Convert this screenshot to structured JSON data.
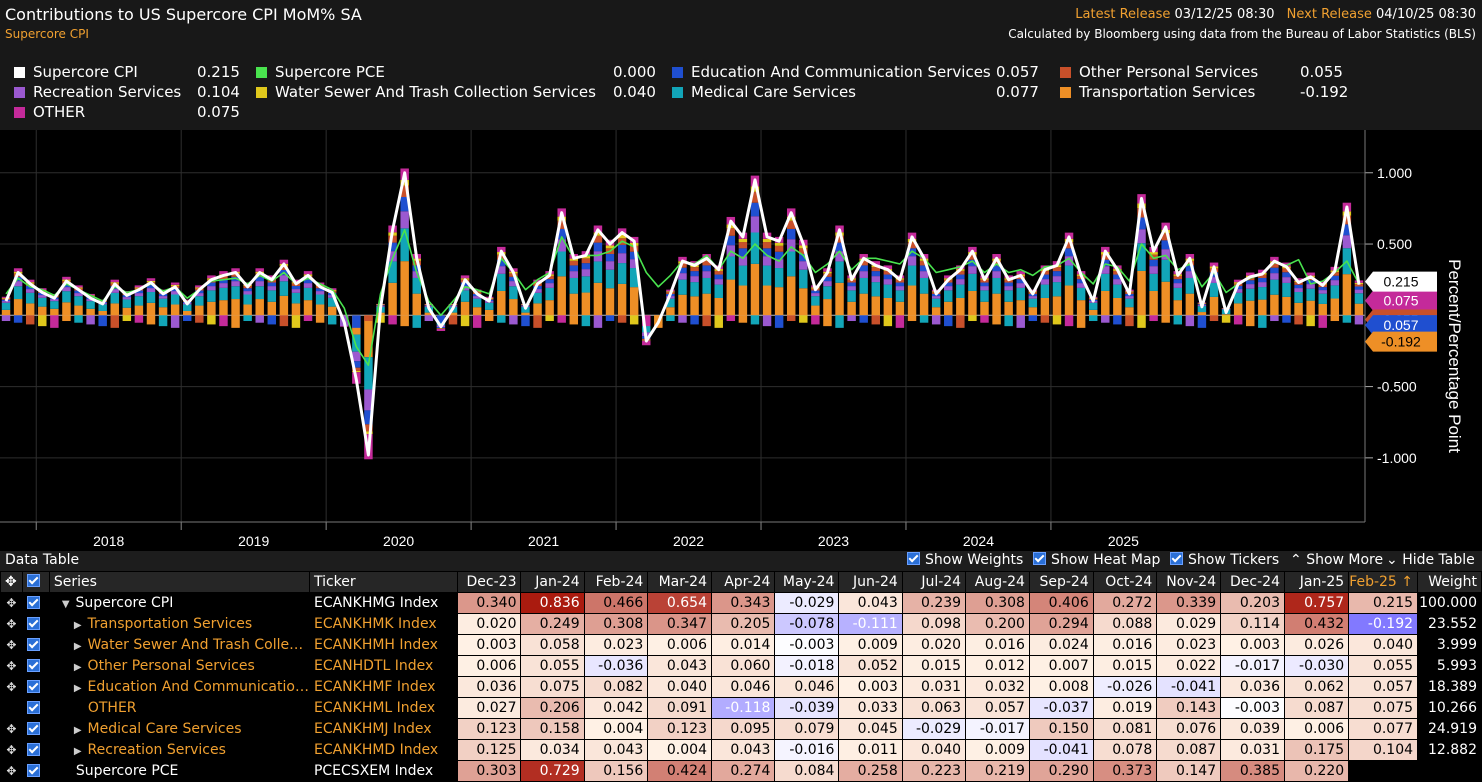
{
  "header": {
    "title": "Contributions to US Supercore CPI MoM% SA",
    "subtitle": "Supercore CPI",
    "latest_label": "Latest Release",
    "latest_value": "03/12/25 08:30",
    "next_label": "Next Release",
    "next_value": "04/10/25 08:30",
    "source": "Calculated by Bloomberg using data from the Bureau of Labor Statistics (BLS)"
  },
  "legend": [
    {
      "name": "Supercore CPI",
      "value": "0.215",
      "color": "#ffffff"
    },
    {
      "name": "Supercore PCE",
      "value": "0.000",
      "color": "#49e34e"
    },
    {
      "name": "Education And Communication Services",
      "value": "0.057",
      "color": "#1f4fd0"
    },
    {
      "name": "Other Personal Services",
      "value": "0.055",
      "color": "#c8502a"
    },
    {
      "name": "Recreation Services",
      "value": "0.104",
      "color": "#9b59d0"
    },
    {
      "name": "Water Sewer And Trash Collection Services",
      "value": "0.040",
      "color": "#e0c81c"
    },
    {
      "name": "Medical Care Services",
      "value": "0.077",
      "color": "#12a5b8"
    },
    {
      "name": "Transportation Services",
      "value": "-0.192",
      "color": "#ee8f26"
    },
    {
      "name": "OTHER",
      "value": "0.075",
      "color": "#c42a9a"
    }
  ],
  "chart_data": {
    "type": "bar",
    "stacked": true,
    "ylabel": "Percent/Percentage Point",
    "ylim": [
      -1.45,
      1.3
    ],
    "yticks": [
      "1.000",
      "0.500",
      "-0.500",
      "-1.000"
    ],
    "ytick_values": [
      1.0,
      0.5,
      -0.5,
      -1.0
    ],
    "x_years": [
      "2018",
      "2019",
      "2020",
      "2021",
      "2022",
      "2023",
      "2024",
      "2025"
    ],
    "x_start": "2017-10",
    "x_end": "2025-02",
    "right_labels": [
      {
        "text": "0.075",
        "value": 0.075,
        "color": "#c42a9a"
      },
      {
        "text": "0.215",
        "value": 0.215,
        "color": "#ffffff"
      },
      {
        "text": "0.055",
        "value": 0.055,
        "color": "#c8502a"
      },
      {
        "text": "0.057",
        "value": 0.057,
        "color": "#1f4fd0"
      },
      {
        "text": "-0.192",
        "value": -0.192,
        "color": "#ee8f26"
      }
    ],
    "series": [
      {
        "name": "Transportation Services",
        "color": "#ee8f26"
      },
      {
        "name": "Medical Care Services",
        "color": "#12a5b8"
      },
      {
        "name": "Recreation Services",
        "color": "#9b59d0"
      },
      {
        "name": "Education And Communication Services",
        "color": "#1f4fd0"
      },
      {
        "name": "Other Personal Services",
        "color": "#c8502a"
      },
      {
        "name": "Water Sewer And Trash Collection Services",
        "color": "#e0c81c"
      },
      {
        "name": "OTHER",
        "color": "#c42a9a"
      }
    ],
    "supercore_cpi": [
      0.1,
      0.3,
      0.22,
      0.16,
      0.12,
      0.24,
      0.18,
      0.12,
      0.08,
      0.22,
      0.14,
      0.18,
      0.23,
      0.15,
      0.2,
      0.08,
      0.18,
      0.25,
      0.28,
      0.3,
      0.2,
      0.3,
      0.25,
      0.36,
      0.22,
      0.28,
      0.2,
      0.16,
      -0.05,
      -0.45,
      -0.98,
      0.05,
      0.6,
      1.0,
      0.4,
      0.05,
      -0.08,
      0.05,
      0.25,
      0.15,
      0.1,
      0.45,
      0.3,
      0.05,
      0.22,
      0.28,
      0.72,
      0.4,
      0.42,
      0.6,
      0.5,
      0.58,
      0.52,
      -0.18,
      -0.05,
      0.15,
      0.38,
      0.35,
      0.4,
      0.32,
      0.66,
      0.55,
      0.95,
      0.55,
      0.52,
      0.72,
      0.5,
      0.18,
      0.3,
      0.6,
      0.25,
      0.4,
      0.35,
      0.32,
      0.25,
      0.55,
      0.4,
      0.15,
      0.25,
      0.32,
      0.45,
      0.25,
      0.4,
      0.25,
      0.28,
      0.15,
      0.32,
      0.35,
      0.55,
      0.28,
      0.1,
      0.45,
      0.32,
      0.15,
      0.82,
      0.45,
      0.62,
      0.28,
      0.4,
      0.06,
      0.34,
      0.02,
      0.22,
      0.27,
      0.29,
      0.38,
      0.34,
      0.23,
      0.27,
      0.21,
      0.31,
      0.76,
      0.215
    ],
    "supercore_pce": [
      0.15,
      0.26,
      0.2,
      0.18,
      0.14,
      0.22,
      0.18,
      0.14,
      0.1,
      0.2,
      0.16,
      0.18,
      0.22,
      0.17,
      0.2,
      0.12,
      0.18,
      0.24,
      0.25,
      0.26,
      0.22,
      0.28,
      0.24,
      0.3,
      0.22,
      0.26,
      0.22,
      0.18,
      0.05,
      -0.22,
      -0.35,
      0.15,
      0.4,
      0.6,
      0.3,
      0.1,
      0.0,
      0.1,
      0.2,
      0.18,
      0.15,
      0.4,
      0.3,
      0.18,
      0.25,
      0.3,
      0.55,
      0.4,
      0.42,
      0.42,
      0.45,
      0.52,
      0.48,
      0.3,
      0.2,
      0.28,
      0.38,
      0.36,
      0.42,
      0.32,
      0.45,
      0.4,
      0.5,
      0.42,
      0.38,
      0.48,
      0.42,
      0.3,
      0.36,
      0.45,
      0.32,
      0.4,
      0.4,
      0.38,
      0.36,
      0.45,
      0.4,
      0.3,
      0.32,
      0.34,
      0.38,
      0.3,
      0.36,
      0.3,
      0.32,
      0.28,
      0.34,
      0.35,
      0.4,
      0.3,
      0.22,
      0.36,
      0.34,
      0.24,
      0.5,
      0.4,
      0.42,
      0.32,
      0.36,
      0.2,
      0.3,
      0.16,
      0.22,
      0.26,
      0.29,
      0.37,
      0.35,
      0.39,
      0.22,
      0.24,
      0.3,
      0.38,
      0.22
    ],
    "table": {
      "months": [
        "Dec-23",
        "Jan-24",
        "Feb-24",
        "Mar-24",
        "Apr-24",
        "May-24",
        "Jun-24",
        "Jul-24",
        "Aug-24",
        "Sep-24",
        "Oct-24",
        "Nov-24",
        "Dec-24",
        "Jan-25",
        "Feb-25"
      ],
      "rows": [
        {
          "series": "Supercore CPI",
          "ticker": "ECANKHMG Index",
          "values": [
            "0.340",
            "0.836",
            "0.466",
            "0.654",
            "0.343",
            "-0.029",
            "0.043",
            "0.239",
            "0.308",
            "0.406",
            "0.272",
            "0.339",
            "0.203",
            "0.757",
            "0.215"
          ],
          "weight": "100.000"
        },
        {
          "series": "Transportation Services",
          "ticker": "ECANKHMK Index",
          "values": [
            "0.020",
            "0.249",
            "0.308",
            "0.347",
            "0.205",
            "-0.078",
            "-0.111",
            "0.098",
            "0.200",
            "0.294",
            "0.088",
            "0.029",
            "0.114",
            "0.432",
            "-0.192"
          ],
          "weight": "23.552"
        },
        {
          "series": "Water Sewer And Trash Colle…",
          "ticker": "ECANKHMH Index",
          "values": [
            "0.003",
            "0.058",
            "0.023",
            "0.006",
            "0.014",
            "-0.003",
            "0.009",
            "0.020",
            "0.016",
            "0.024",
            "0.016",
            "0.023",
            "0.003",
            "0.026",
            "0.040"
          ],
          "weight": "3.999"
        },
        {
          "series": "Other Personal Services",
          "ticker": "ECANHDTL Index",
          "values": [
            "0.006",
            "0.055",
            "-0.036",
            "0.043",
            "0.060",
            "-0.018",
            "0.052",
            "0.015",
            "0.012",
            "0.007",
            "0.015",
            "0.022",
            "-0.017",
            "-0.030",
            "0.055"
          ],
          "weight": "5.993"
        },
        {
          "series": "Education And Communicatio…",
          "ticker": "ECANKHMF Index",
          "values": [
            "0.036",
            "0.075",
            "0.082",
            "0.040",
            "0.046",
            "0.046",
            "0.003",
            "0.031",
            "0.032",
            "0.008",
            "-0.026",
            "-0.041",
            "0.036",
            "0.062",
            "0.057"
          ],
          "weight": "18.389"
        },
        {
          "series": "OTHER",
          "ticker": "ECANKHML Index",
          "values": [
            "0.027",
            "0.206",
            "0.042",
            "0.091",
            "-0.118",
            "-0.039",
            "0.033",
            "0.063",
            "0.057",
            "-0.037",
            "0.019",
            "0.143",
            "-0.003",
            "0.087",
            "0.075"
          ],
          "weight": "10.266"
        },
        {
          "series": "Medical Care Services",
          "ticker": "ECANKHMJ Index",
          "values": [
            "0.123",
            "0.158",
            "0.004",
            "0.123",
            "0.095",
            "0.079",
            "0.045",
            "-0.029",
            "-0.017",
            "0.150",
            "0.081",
            "0.076",
            "0.039",
            "0.006",
            "0.077"
          ],
          "weight": "24.919"
        },
        {
          "series": "Recreation Services",
          "ticker": "ECANKHMD Index",
          "values": [
            "0.125",
            "0.034",
            "0.043",
            "0.004",
            "0.043",
            "-0.016",
            "0.011",
            "0.040",
            "0.009",
            "-0.041",
            "0.078",
            "0.087",
            "0.031",
            "0.175",
            "0.104"
          ],
          "weight": "12.882"
        },
        {
          "series": "Supercore PCE",
          "ticker": "PCECSXEM Index",
          "values": [
            "0.303",
            "0.729",
            "0.156",
            "0.424",
            "0.274",
            "0.084",
            "0.258",
            "0.223",
            "0.219",
            "0.290",
            "0.373",
            "0.147",
            "0.385",
            "0.220",
            ""
          ],
          "weight": ""
        }
      ]
    }
  },
  "datatable": {
    "title": "Data Table",
    "show_weights": "Show Weights",
    "show_heatmap": "Show Heat Map",
    "show_tickers": "Show Tickers",
    "show_more": "Show More",
    "hide_table": "Hide Table",
    "col_series": "Series",
    "col_ticker": "Ticker",
    "col_weight": "Weight",
    "sort_mark": "↑"
  }
}
